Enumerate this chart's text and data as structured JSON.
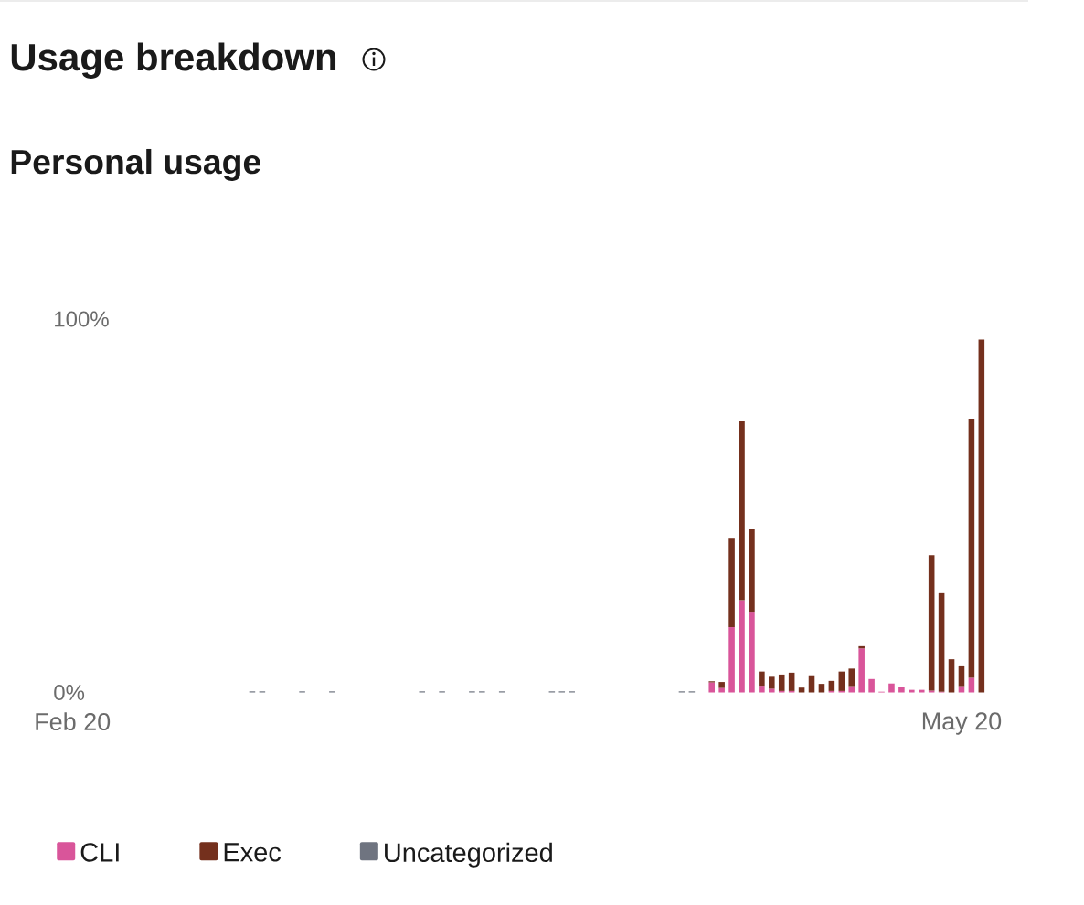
{
  "chart_data": {
    "type": "bar",
    "title": "Usage breakdown",
    "subtitle": "Personal usage",
    "categories": [
      "Feb 20",
      null,
      null,
      null,
      null,
      null,
      null,
      null,
      null,
      null,
      null,
      null,
      null,
      null,
      null,
      null,
      null,
      null,
      null,
      null,
      null,
      null,
      null,
      null,
      null,
      null,
      null,
      null,
      null,
      null,
      null,
      null,
      null,
      null,
      null,
      null,
      null,
      null,
      null,
      null,
      null,
      null,
      null,
      null,
      null,
      null,
      null,
      null,
      null,
      null,
      null,
      null,
      null,
      null,
      null,
      null,
      null,
      null,
      null,
      null,
      null,
      null,
      null,
      null,
      null,
      null,
      null,
      null,
      null,
      null,
      null,
      null,
      null,
      null,
      null,
      null,
      null,
      null,
      null,
      null,
      null,
      null,
      null,
      null,
      null,
      null,
      null,
      null,
      null,
      "May 20",
      null,
      null
    ],
    "stacked": true,
    "series": [
      {
        "name": "CLI",
        "color": "#d9559a",
        "values": [
          null,
          null,
          null,
          null,
          null,
          null,
          null,
          null,
          null,
          null,
          null,
          null,
          null,
          null,
          null,
          null,
          null,
          null,
          null,
          null,
          null,
          null,
          null,
          null,
          null,
          null,
          null,
          null,
          null,
          null,
          null,
          null,
          null,
          null,
          null,
          null,
          null,
          null,
          null,
          null,
          null,
          null,
          null,
          null,
          null,
          null,
          null,
          null,
          null,
          null,
          null,
          null,
          null,
          null,
          null,
          null,
          null,
          null,
          null,
          null,
          null,
          null,
          null,
          null,
          2.7,
          1.2,
          17.5,
          24.7,
          21.4,
          1.8,
          1.0,
          0.4,
          0.4,
          null,
          null,
          null,
          0.4,
          0.4,
          1.7,
          11.8,
          3.6,
          0.2,
          2.4,
          1.4,
          0.7,
          0.7,
          0.5,
          0.2,
          null,
          1.7,
          3.9,
          null
        ]
      },
      {
        "name": "Exec",
        "color": "#74301d",
        "values": [
          null,
          null,
          null,
          null,
          null,
          null,
          null,
          null,
          null,
          null,
          null,
          null,
          null,
          null,
          null,
          null,
          null,
          null,
          null,
          null,
          null,
          null,
          null,
          null,
          null,
          null,
          null,
          null,
          null,
          null,
          null,
          null,
          null,
          null,
          null,
          null,
          null,
          null,
          null,
          null,
          null,
          null,
          null,
          null,
          null,
          null,
          null,
          null,
          null,
          null,
          null,
          null,
          null,
          null,
          null,
          null,
          null,
          null,
          null,
          null,
          null,
          null,
          null,
          null,
          0.3,
          1.6,
          23.7,
          48.0,
          22.3,
          3.8,
          3.2,
          4.4,
          4.9,
          1.3,
          4.6,
          2.3,
          2.7,
          5.2,
          4.7,
          0.6,
          null,
          null,
          null,
          null,
          null,
          null,
          36.3,
          26.4,
          8.9,
          5.3,
          69.4,
          94.5
        ]
      },
      {
        "name": "Uncategorized",
        "color": "#6f7480",
        "values": [
          null,
          null,
          null,
          null,
          null,
          null,
          null,
          null,
          null,
          null,
          null,
          null,
          null,
          null,
          null,
          null,
          null,
          null,
          0.3,
          0.3,
          null,
          null,
          null,
          0.3,
          null,
          null,
          0.3,
          null,
          null,
          null,
          null,
          null,
          null,
          null,
          null,
          0.3,
          null,
          0.3,
          null,
          null,
          0.3,
          0.3,
          null,
          0.3,
          null,
          null,
          null,
          null,
          0.3,
          0.3,
          0.3,
          null,
          null,
          null,
          null,
          null,
          null,
          null,
          null,
          null,
          null,
          0.3,
          0.3,
          null,
          null,
          null,
          null,
          null,
          null,
          null,
          null,
          null,
          null,
          null,
          null,
          null,
          null,
          null,
          null,
          null,
          null,
          null,
          null,
          null,
          null,
          null,
          null,
          null,
          null,
          null,
          null,
          null
        ]
      }
    ],
    "ylim": [
      0,
      100
    ],
    "yticks": [
      {
        "value": 0,
        "label": "0%"
      },
      {
        "value": 100,
        "label": "100%"
      }
    ],
    "legend": "bottom left"
  }
}
